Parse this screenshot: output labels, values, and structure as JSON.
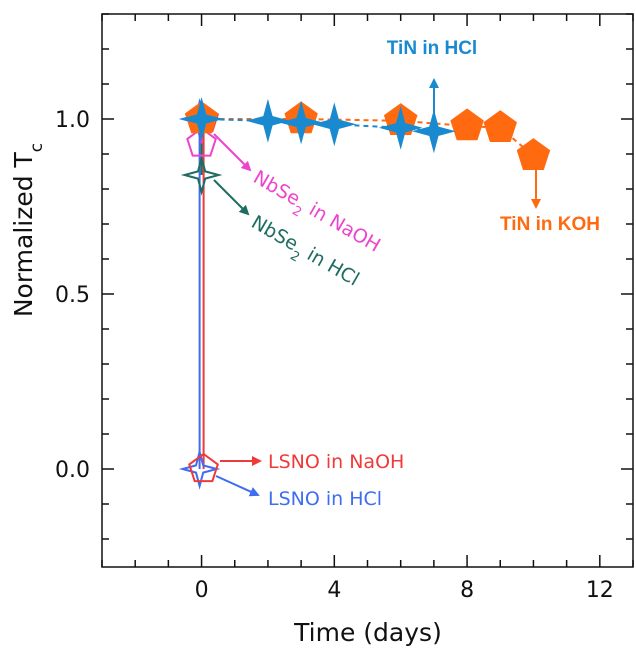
{
  "chart_data": {
    "type": "line",
    "title": "",
    "xlabel": "Time (days)",
    "ylabel_main": "Normalized T",
    "ylabel_sub": "c",
    "xlim": [
      -3,
      13
    ],
    "ylim": [
      -0.28,
      1.3
    ],
    "x_ticks": [
      0,
      4,
      8,
      12
    ],
    "x_tick_labels": [
      "0",
      "4",
      "8",
      "12"
    ],
    "y_ticks": [
      0.0,
      0.5,
      1.0
    ],
    "y_tick_labels": [
      "0.0",
      "0.5",
      "1.0"
    ],
    "grid": false,
    "colors": {
      "tin_koh": "#ff6a10",
      "tin_hcl": "#1a8ad0",
      "nbse2_naoh": "#ee44cc",
      "nbse2_hcl": "#1f6d62",
      "lsno_naoh": "#f03a3a",
      "lsno_hcl": "#3f6df0"
    },
    "series": [
      {
        "key": "tin_koh",
        "marker": "pentagon-filled",
        "x": [
          0,
          3,
          6,
          8,
          9,
          10
        ],
        "y": [
          1.0,
          1.0,
          0.995,
          0.98,
          0.975,
          0.895
        ]
      },
      {
        "key": "tin_hcl",
        "marker": "star-filled",
        "x": [
          0,
          2,
          3,
          4,
          6,
          7
        ],
        "y": [
          1.0,
          0.995,
          0.99,
          0.985,
          0.975,
          0.965
        ]
      },
      {
        "key": "nbse2_naoh",
        "marker": "pentagon-open",
        "x": [
          0,
          0
        ],
        "y": [
          1.0,
          0.93
        ]
      },
      {
        "key": "nbse2_hcl",
        "marker": "star-open",
        "x": [
          0,
          0
        ],
        "y": [
          1.0,
          0.84
        ]
      },
      {
        "key": "lsno_naoh",
        "marker": "pentagon-open",
        "x": [
          0,
          0
        ],
        "y": [
          1.0,
          0.0
        ]
      },
      {
        "key": "lsno_hcl",
        "marker": "star-open",
        "x": [
          0,
          0
        ],
        "y": [
          1.0,
          0.0
        ]
      }
    ],
    "annotations": {
      "tin_hcl": "TiN in HCl",
      "tin_koh": "TiN in KOH",
      "nbse2_naoh_pre": "NbSe",
      "nbse2_naoh_sub": "2",
      "nbse2_naoh_post": " in NaOH",
      "nbse2_hcl_pre": "NbSe",
      "nbse2_hcl_sub": "2",
      "nbse2_hcl_post": " in HCl",
      "lsno_naoh": "LSNO  in NaOH",
      "lsno_hcl": "LSNO  in HCl"
    }
  }
}
